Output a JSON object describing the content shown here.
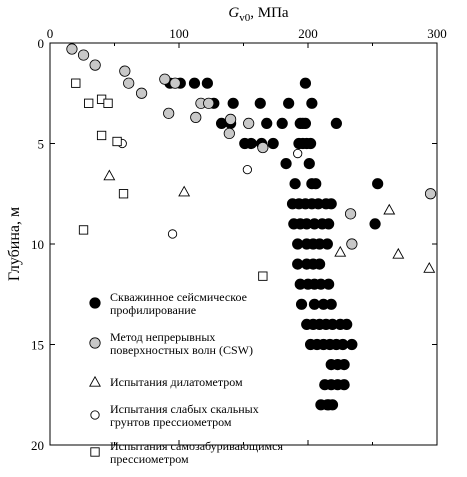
{
  "chart_data": {
    "type": "scatter",
    "title": "",
    "xlabel_main": "G",
    "xlabel_sub": "v0",
    "xlabel_unit": ", МПа",
    "ylabel": "Глубина, м",
    "xlim": [
      0,
      300
    ],
    "ylim": [
      20,
      0
    ],
    "xticks": [
      0,
      100,
      200,
      300
    ],
    "yticks": [
      0,
      5,
      10,
      15,
      20
    ],
    "x_axis_position": "top",
    "y_inverted": true,
    "grid": false,
    "legend_position": "bottom-left",
    "series": [
      {
        "name": "Скважинное сейсмическое профилирование",
        "name_lines": [
          "Скважинное сейсмическое",
          "профилирование"
        ],
        "marker": "circle-filled",
        "color": "#000000",
        "points": [
          [
            93,
            2
          ],
          [
            101,
            2
          ],
          [
            112,
            2
          ],
          [
            122,
            2
          ],
          [
            198,
            2
          ],
          [
            127,
            3
          ],
          [
            142,
            3
          ],
          [
            163,
            3
          ],
          [
            185,
            3
          ],
          [
            203,
            3
          ],
          [
            133,
            4
          ],
          [
            140,
            4
          ],
          [
            168,
            4
          ],
          [
            180,
            4
          ],
          [
            194,
            4
          ],
          [
            196,
            4
          ],
          [
            198,
            4
          ],
          [
            222,
            4
          ],
          [
            156,
            5
          ],
          [
            164,
            5
          ],
          [
            173,
            5
          ],
          [
            193,
            5
          ],
          [
            196,
            5
          ],
          [
            199,
            5
          ],
          [
            202,
            5
          ],
          [
            151,
            5
          ],
          [
            183,
            6
          ],
          [
            201,
            6
          ],
          [
            190,
            7
          ],
          [
            203,
            7
          ],
          [
            206,
            7
          ],
          [
            254,
            7
          ],
          [
            188,
            8
          ],
          [
            193,
            8
          ],
          [
            198,
            8
          ],
          [
            203,
            8
          ],
          [
            208,
            8
          ],
          [
            214,
            8
          ],
          [
            218,
            8
          ],
          [
            189,
            9
          ],
          [
            194,
            9
          ],
          [
            199,
            9
          ],
          [
            205,
            9
          ],
          [
            211,
            9
          ],
          [
            216,
            9
          ],
          [
            252,
            9
          ],
          [
            192,
            10
          ],
          [
            199,
            10
          ],
          [
            204,
            10
          ],
          [
            209,
            10
          ],
          [
            215,
            10
          ],
          [
            192,
            11
          ],
          [
            199,
            11
          ],
          [
            204,
            11
          ],
          [
            209,
            11
          ],
          [
            194,
            12
          ],
          [
            200,
            12
          ],
          [
            205,
            12
          ],
          [
            210,
            12
          ],
          [
            216,
            12
          ],
          [
            195,
            13
          ],
          [
            205,
            13
          ],
          [
            212,
            13
          ],
          [
            218,
            13
          ],
          [
            199,
            14
          ],
          [
            204,
            14
          ],
          [
            209,
            14
          ],
          [
            214,
            14
          ],
          [
            219,
            14
          ],
          [
            225,
            14
          ],
          [
            230,
            14
          ],
          [
            202,
            15
          ],
          [
            207,
            15
          ],
          [
            212,
            15
          ],
          [
            217,
            15
          ],
          [
            222,
            15
          ],
          [
            227,
            15
          ],
          [
            234,
            15
          ],
          [
            218,
            16
          ],
          [
            223,
            16
          ],
          [
            228,
            16
          ],
          [
            213,
            17
          ],
          [
            218,
            17
          ],
          [
            223,
            17
          ],
          [
            228,
            17
          ],
          [
            210,
            18
          ],
          [
            215,
            18
          ],
          [
            219,
            18
          ],
          [
            216,
            18
          ]
        ]
      },
      {
        "name": "Метод непрерывных поверхностных волн (CSW)",
        "name_lines": [
          "Метод непрерывных",
          "поверхностных волн (CSW)"
        ],
        "marker": "circle-gray",
        "color": "#bfbfbf",
        "points": [
          [
            17,
            0.3
          ],
          [
            26,
            0.6
          ],
          [
            35,
            1.1
          ],
          [
            58,
            1.4
          ],
          [
            89,
            1.8
          ],
          [
            71,
            2.5
          ],
          [
            61,
            2
          ],
          [
            97,
            2
          ],
          [
            117,
            3
          ],
          [
            123,
            3
          ],
          [
            92,
            3.5
          ],
          [
            113,
            3.7
          ],
          [
            140,
            3.8
          ],
          [
            154,
            4
          ],
          [
            139,
            4.5
          ],
          [
            165,
            5.2
          ],
          [
            233,
            8.5
          ],
          [
            234,
            10
          ],
          [
            295,
            7.5
          ]
        ]
      },
      {
        "name": "Испытания дилатометром",
        "name_lines": [
          "Испытания дилатометром"
        ],
        "marker": "triangle-open",
        "color": "#000000",
        "points": [
          [
            46,
            6.6
          ],
          [
            104,
            7.4
          ],
          [
            225,
            10.4
          ],
          [
            263,
            8.3
          ],
          [
            270,
            10.5
          ],
          [
            294,
            11.2
          ]
        ]
      },
      {
        "name": "Испытания слабых скальных грунтов прессиометром",
        "name_lines": [
          "Испытания слабых скальных",
          "грунтов прессиометром"
        ],
        "marker": "circle-open",
        "color": "#000000",
        "points": [
          [
            56,
            5
          ],
          [
            153,
            6.3
          ],
          [
            192,
            5.5
          ],
          [
            95,
            9.5
          ]
        ]
      },
      {
        "name": "Испытания самозабуривающимся прессиометром",
        "name_lines": [
          "Испытания самозабуривающимся",
          "прессиометром"
        ],
        "marker": "square-open",
        "color": "#000000",
        "points": [
          [
            20,
            2
          ],
          [
            40,
            2.8
          ],
          [
            30,
            3
          ],
          [
            45,
            3
          ],
          [
            40,
            4.6
          ],
          [
            52,
            4.9
          ],
          [
            57,
            7.5
          ],
          [
            26,
            9.3
          ],
          [
            165,
            11.6
          ]
        ]
      }
    ]
  }
}
